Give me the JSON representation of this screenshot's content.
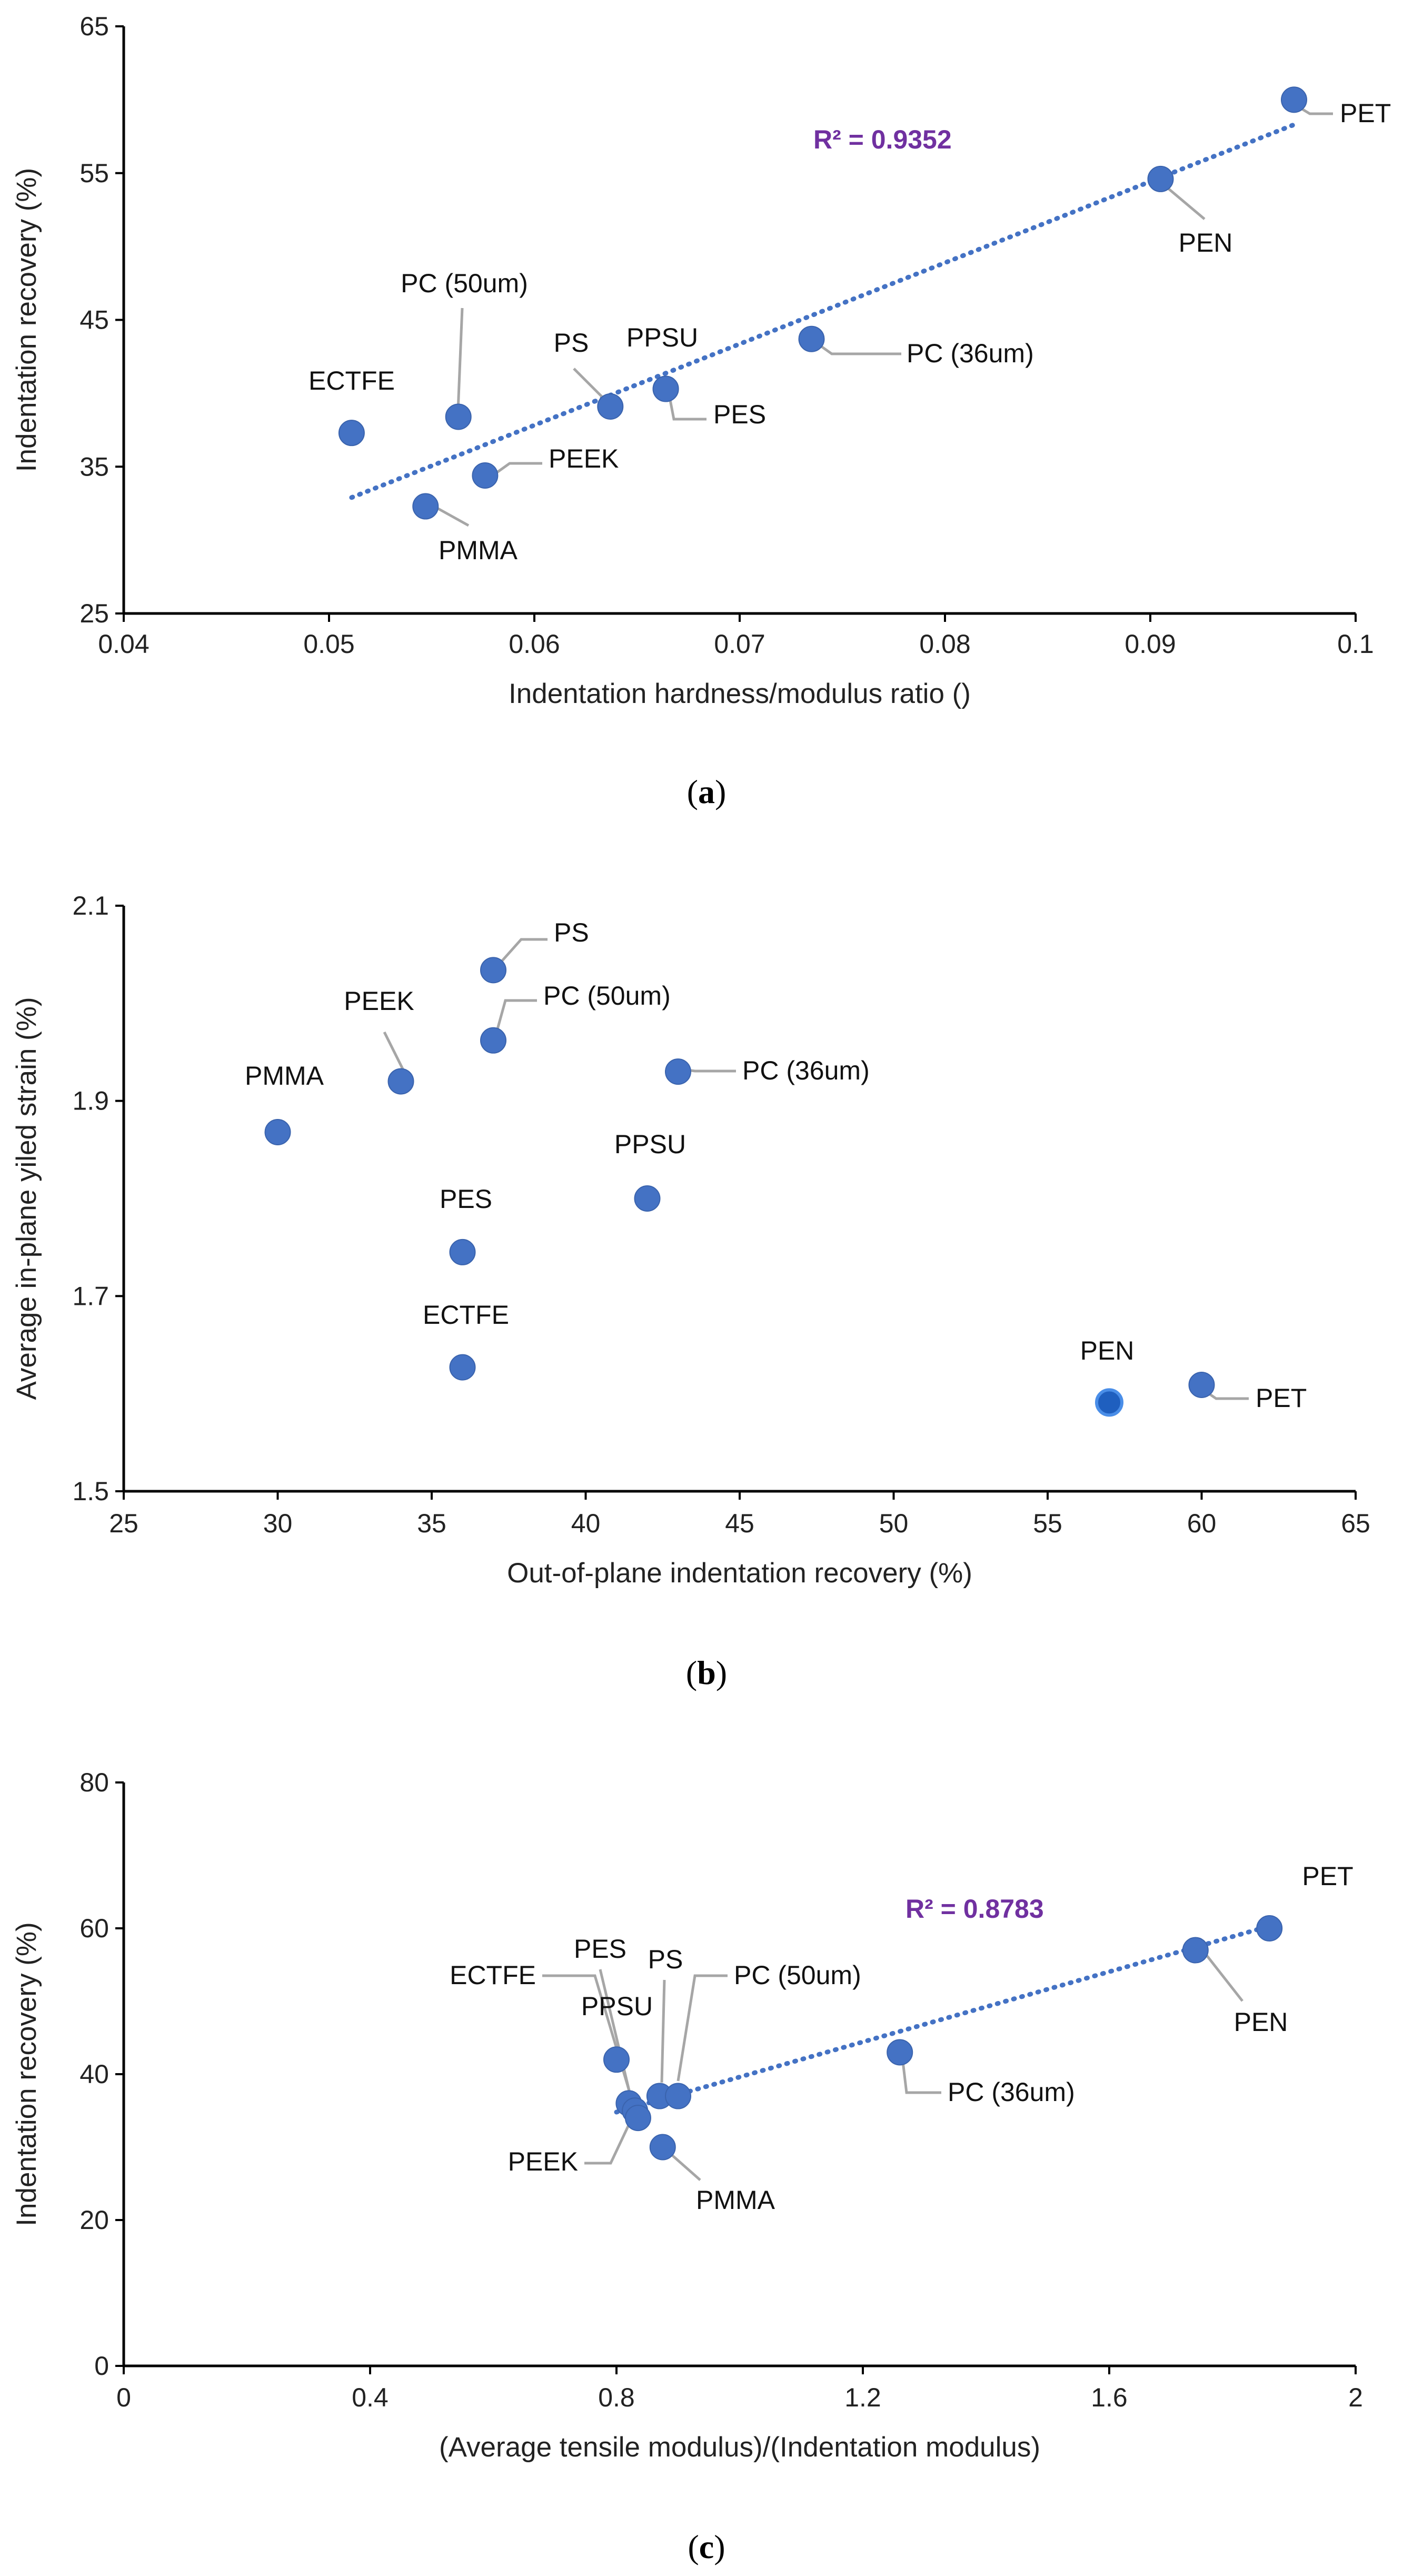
{
  "chart_data": [
    {
      "id": "a",
      "type": "scatter",
      "panel_label": "a",
      "xlabel": "Indentation hardness/modulus ratio ()",
      "ylabel": "Indentation recovery (%)",
      "xlim": [
        0.04,
        0.1
      ],
      "ylim": [
        25,
        65
      ],
      "xticks": [
        0.04,
        0.05,
        0.06,
        0.07,
        0.08,
        0.09,
        0.1
      ],
      "xtick_labels": [
        "0.04",
        "0.05",
        "0.06",
        "0.07",
        "0.08",
        "0.09",
        "0.1"
      ],
      "yticks": [
        25,
        35,
        45,
        55,
        65
      ],
      "ytick_labels": [
        "25",
        "35",
        "45",
        "55",
        "65"
      ],
      "marker_color": "#4472c4",
      "leader_color": "#a6a6a6",
      "trendline": {
        "color": "#4472c4",
        "r2_label": "R² = 0.9352",
        "from": [
          0.0511,
          32.9
        ],
        "to": [
          0.097,
          58.3
        ]
      },
      "points": [
        {
          "label": "ECTFE",
          "x": 0.0511,
          "y": 37.3
        },
        {
          "label": "PMMA",
          "x": 0.0547,
          "y": 32.3
        },
        {
          "label": "PC (50um)",
          "x": 0.0563,
          "y": 38.4
        },
        {
          "label": "PEEK",
          "x": 0.0576,
          "y": 34.4
        },
        {
          "label": "PS",
          "x": 0.0637,
          "y": 39.1
        },
        {
          "label": "PPSU",
          "x": 0.0664,
          "y": 40.3
        },
        {
          "label": "PES",
          "x": 0.0664,
          "y": 40.3
        },
        {
          "label": "PC (36um)",
          "x": 0.0735,
          "y": 43.7
        },
        {
          "label": "PEN",
          "x": 0.0905,
          "y": 54.6
        },
        {
          "label": "PET",
          "x": 0.097,
          "y": 60.0
        }
      ]
    },
    {
      "id": "b",
      "type": "scatter",
      "panel_label": "b",
      "xlabel": "Out-of-plane indentation recovery (%)",
      "ylabel": "Average in-plane yiled strain (%)",
      "xlim": [
        25,
        65
      ],
      "ylim": [
        1.5,
        2.1
      ],
      "xticks": [
        25,
        30,
        35,
        40,
        45,
        50,
        55,
        60,
        65
      ],
      "xtick_labels": [
        "25",
        "30",
        "35",
        "40",
        "45",
        "50",
        "55",
        "60",
        "65"
      ],
      "yticks": [
        1.5,
        1.7,
        1.9,
        2.1
      ],
      "ytick_labels": [
        "1.5",
        "1.7",
        "1.9",
        "2.1"
      ],
      "marker_color": "#4472c4",
      "leader_color": "#a6a6a6",
      "points": [
        {
          "label": "PMMA",
          "x": 30,
          "y": 1.868
        },
        {
          "label": "PEEK",
          "x": 34,
          "y": 1.92
        },
        {
          "label": "PES",
          "x": 36,
          "y": 1.745
        },
        {
          "label": "ECTFE",
          "x": 36,
          "y": 1.627
        },
        {
          "label": "PS",
          "x": 37,
          "y": 2.034
        },
        {
          "label": "PC (50um)",
          "x": 37,
          "y": 1.962
        },
        {
          "label": "PPSU",
          "x": 42,
          "y": 1.8
        },
        {
          "label": "PC (36um)",
          "x": 43,
          "y": 1.93
        },
        {
          "label": "PEN",
          "x": 57,
          "y": 1.591
        },
        {
          "label": "PET",
          "x": 60,
          "y": 1.609
        }
      ]
    },
    {
      "id": "c",
      "type": "scatter",
      "panel_label": "c",
      "xlabel": "(Average tensile modulus)/(Indentation modulus)",
      "ylabel": "Indentation recovery (%)",
      "xlim": [
        0,
        2
      ],
      "ylim": [
        0,
        80
      ],
      "xticks": [
        0,
        0.4,
        0.8,
        1.2,
        1.6,
        2
      ],
      "xtick_labels": [
        "0",
        "0.4",
        "0.8",
        "1.2",
        "1.6",
        "2"
      ],
      "yticks": [
        0,
        20,
        40,
        60,
        80
      ],
      "ytick_labels": [
        "0",
        "20",
        "40",
        "60",
        "80"
      ],
      "marker_color": "#4472c4",
      "leader_color": "#a6a6a6",
      "trendline": {
        "color": "#4472c4",
        "r2_label": "R² = 0.8783",
        "from": [
          0.8,
          34.8
        ],
        "to": [
          1.86,
          60.3
        ]
      },
      "points": [
        {
          "label": "PPSU",
          "x": 0.8,
          "y": 42
        },
        {
          "label": "ECTFE",
          "x": 0.82,
          "y": 36
        },
        {
          "label": "PES",
          "x": 0.83,
          "y": 35
        },
        {
          "label": "PEEK",
          "x": 0.835,
          "y": 34
        },
        {
          "label": "PS",
          "x": 0.87,
          "y": 37
        },
        {
          "label": "PMMA",
          "x": 0.875,
          "y": 30
        },
        {
          "label": "PC (50um)",
          "x": 0.9,
          "y": 37
        },
        {
          "label": "PC (36um)",
          "x": 1.26,
          "y": 43
        },
        {
          "label": "PEN",
          "x": 1.74,
          "y": 57
        },
        {
          "label": "PET",
          "x": 1.86,
          "y": 60
        }
      ]
    }
  ]
}
